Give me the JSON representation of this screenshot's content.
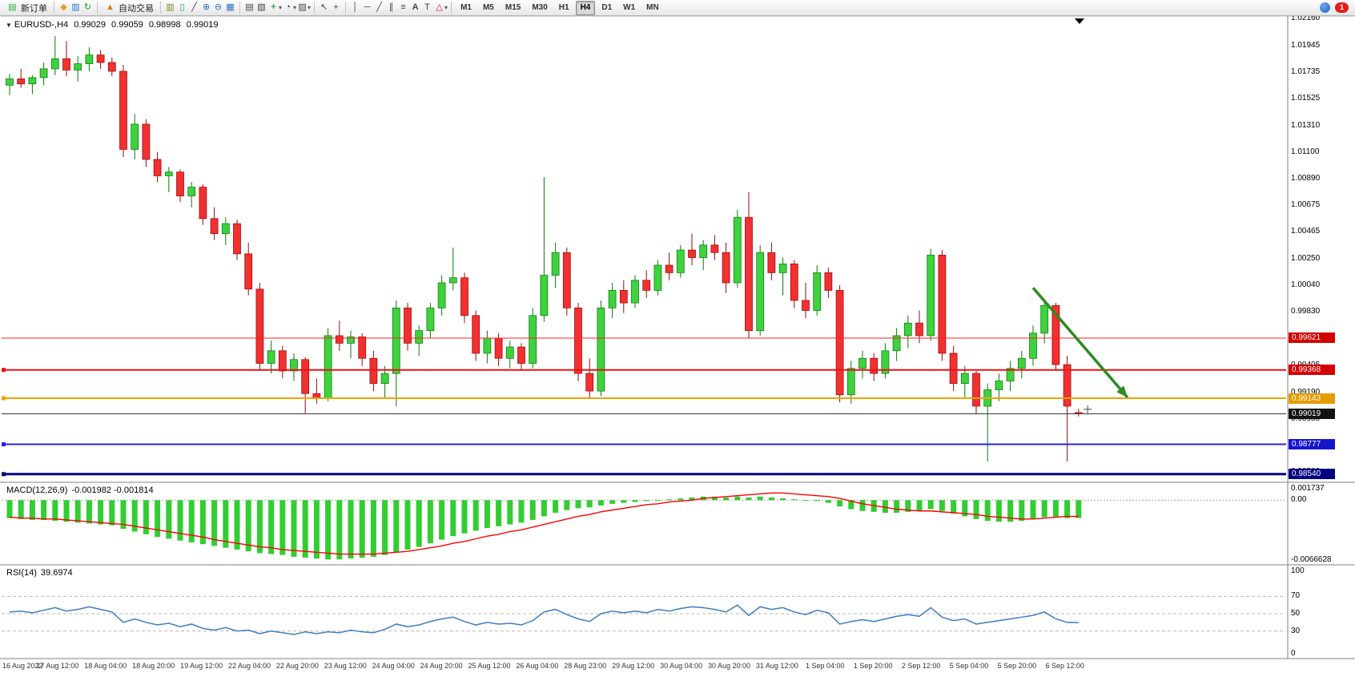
{
  "toolbar": {
    "new_order": "新订单",
    "autotrading": "自动交易",
    "timeframes": [
      "M1",
      "M5",
      "M15",
      "M30",
      "H1",
      "H4",
      "D1",
      "W1",
      "MN"
    ],
    "active_timeframe": "H4",
    "notification_count": "1"
  },
  "icons": {
    "new_order": "▤",
    "market_watch": "◆",
    "data_window": "▥",
    "refresh": "↻",
    "autotrading": "▲",
    "bar_chart": "▥",
    "candles": "▯",
    "line_chart": "╱",
    "zoom_in": "⊕",
    "zoom_out": "⊖",
    "tile_windows": "▦",
    "chart_list": "▤",
    "objects_list": "▧",
    "add_indicator": "+",
    "periods_clock": "◔",
    "templates": "▨",
    "cursor": "↖",
    "crosshair": "+",
    "vline": "│",
    "hline": "─",
    "trendline": "╱",
    "channel": "∥",
    "fibonacci": "≡",
    "text": "A",
    "text_label": "T",
    "shapes": "△",
    "dropdown": "▾",
    "shift_marker": "▼"
  },
  "time_axis": {
    "labels": [
      "16 Aug 2022",
      "17 Aug 12:00",
      "18 Aug 04:00",
      "18 Aug 20:00",
      "19 Aug 12:00",
      "22 Aug 04:00",
      "22 Aug 20:00",
      "23 Aug 12:00",
      "24 Aug 04:00",
      "24 Aug 20:00",
      "25 Aug 12:00",
      "26 Aug 04:00",
      "28 Aug 23:00",
      "29 Aug 12:00",
      "30 Aug 04:00",
      "30 Aug 20:00",
      "31 Aug 12:00",
      "1 Sep 04:00",
      "1 Sep 20:00",
      "2 Sep 12:00",
      "5 Sep 04:00",
      "5 Sep 20:00",
      "6 Sep 12:00"
    ]
  },
  "chart_data": [
    {
      "type": "candlestick",
      "title": "EURUSD-,H4",
      "ohlc_label": {
        "open": "0.99029",
        "high": "0.99059",
        "low": "0.98998",
        "close": "0.99019"
      },
      "ylim": [
        0.98475,
        1.021665
      ],
      "yticks": [
        "1.02160",
        "1.01945",
        "1.01735",
        "1.01525",
        "1.01310",
        "1.01100",
        "1.00890",
        "1.00675",
        "1.00465",
        "1.00250",
        "1.00040",
        "0.99830",
        "0.99620",
        "0.99405",
        "0.99190",
        "0.98980",
        "0.98770",
        "0.98560"
      ],
      "price_badges": [
        {
          "label": "0.99621",
          "color": "#d40000"
        },
        {
          "label": "0.99368",
          "color": "#d40000"
        },
        {
          "label": "0.99143",
          "color": "#e69b00"
        },
        {
          "label": "0.99019",
          "color": "#111111"
        },
        {
          "label": "0.98777",
          "color": "#1515cc"
        },
        {
          "label": "0.98540",
          "color": "#000080"
        }
      ],
      "hlines": [
        {
          "price": 0.99621,
          "color": "#ff2020",
          "width": 1,
          "handles": false
        },
        {
          "price": 0.99368,
          "color": "#ee1010",
          "width": 2,
          "handles": true
        },
        {
          "price": 0.99143,
          "color": "#f0a500",
          "width": 2,
          "handles": true
        },
        {
          "price": 0.99019,
          "color": "#383838",
          "width": 1,
          "handles": false
        },
        {
          "price": 0.98777,
          "color": "#2222ee",
          "width": 2,
          "handles": true
        },
        {
          "price": 0.9854,
          "color": "#000080",
          "width": 3,
          "handles": true
        }
      ],
      "trend_arrow": {
        "from_bar": 90,
        "from_price": 1.0002,
        "to_bar": 98.3,
        "to_price": 0.9915,
        "color": "#2e8b22"
      },
      "cursor_cross": {
        "bar": 94.8,
        "price": 0.99055
      },
      "candle_colors": {
        "up_fill": "#3fd23f",
        "up_stroke": "#0a7a0a",
        "down_fill": "#f23030",
        "down_stroke": "#9a0a0a"
      },
      "candles": [
        [
          1.0163,
          1.0172,
          1.0155,
          1.0168
        ],
        [
          1.0168,
          1.0176,
          1.0161,
          1.0164
        ],
        [
          1.0164,
          1.0171,
          1.0156,
          1.0169
        ],
        [
          1.0169,
          1.0181,
          1.0163,
          1.0176
        ],
        [
          1.0176,
          1.0202,
          1.0171,
          1.0184
        ],
        [
          1.0184,
          1.0198,
          1.017,
          1.0175
        ],
        [
          1.0175,
          1.0186,
          1.0166,
          1.018
        ],
        [
          1.018,
          1.0193,
          1.0174,
          1.0187
        ],
        [
          1.0187,
          1.0191,
          1.0176,
          1.0181
        ],
        [
          1.0181,
          1.0185,
          1.017,
          1.0174
        ],
        [
          1.0174,
          1.0179,
          1.0106,
          1.0112
        ],
        [
          1.0112,
          1.014,
          1.0104,
          1.0132
        ],
        [
          1.0132,
          1.0136,
          1.0098,
          1.0104
        ],
        [
          1.0104,
          1.011,
          1.0086,
          1.0091
        ],
        [
          1.0091,
          1.0098,
          1.0078,
          1.0094
        ],
        [
          1.0094,
          1.0096,
          1.007,
          1.0075
        ],
        [
          1.0075,
          1.0086,
          1.0066,
          1.0082
        ],
        [
          1.0082,
          1.0084,
          1.0052,
          1.0057
        ],
        [
          1.0057,
          1.0066,
          1.004,
          1.0045
        ],
        [
          1.0045,
          1.0058,
          1.0036,
          1.0053
        ],
        [
          1.0053,
          1.0056,
          1.0024,
          1.0029
        ],
        [
          1.0029,
          1.0038,
          0.9996,
          1.0001
        ],
        [
          1.0001,
          1.0006,
          0.9936,
          0.9942
        ],
        [
          0.9942,
          0.996,
          0.9934,
          0.9952
        ],
        [
          0.9952,
          0.9956,
          0.993,
          0.9936
        ],
        [
          0.9936,
          0.995,
          0.9928,
          0.9945
        ],
        [
          0.9945,
          0.9947,
          0.9902,
          0.9918
        ],
        [
          0.9918,
          0.993,
          0.991,
          0.9914
        ],
        [
          0.9914,
          0.997,
          0.9912,
          0.9964
        ],
        [
          0.9964,
          0.9976,
          0.9952,
          0.9958
        ],
        [
          0.9958,
          0.9968,
          0.9946,
          0.9963
        ],
        [
          0.9963,
          0.9966,
          0.994,
          0.9946
        ],
        [
          0.9946,
          0.9952,
          0.992,
          0.9926
        ],
        [
          0.9926,
          0.994,
          0.9914,
          0.9934
        ],
        [
          0.9934,
          0.9992,
          0.9908,
          0.9986
        ],
        [
          0.9986,
          0.999,
          0.9952,
          0.9958
        ],
        [
          0.9958,
          0.9972,
          0.9948,
          0.9968
        ],
        [
          0.9968,
          0.999,
          0.9962,
          0.9986
        ],
        [
          0.9986,
          1.0012,
          0.998,
          1.0006
        ],
        [
          1.0006,
          1.0034,
          1.0,
          1.001
        ],
        [
          1.001,
          1.0014,
          0.9974,
          0.998
        ],
        [
          0.998,
          0.9984,
          0.9944,
          0.995
        ],
        [
          0.995,
          0.9968,
          0.9942,
          0.9962
        ],
        [
          0.9962,
          0.9966,
          0.994,
          0.9946
        ],
        [
          0.9946,
          0.996,
          0.9938,
          0.9955
        ],
        [
          0.9955,
          0.9958,
          0.9936,
          0.9942
        ],
        [
          0.9942,
          0.9986,
          0.9938,
          0.998
        ],
        [
          0.998,
          1.009,
          0.9975,
          1.0012
        ],
        [
          1.0012,
          1.0038,
          1.0002,
          1.003
        ],
        [
          1.003,
          1.0034,
          0.998,
          0.9986
        ],
        [
          0.9986,
          0.999,
          0.9928,
          0.9934
        ],
        [
          0.9934,
          0.9946,
          0.9914,
          0.992
        ],
        [
          0.992,
          0.9992,
          0.9916,
          0.9986
        ],
        [
          0.9986,
          1.0006,
          0.9978,
          1.0
        ],
        [
          1.0,
          1.0008,
          0.9982,
          0.999
        ],
        [
          0.999,
          1.0012,
          0.9986,
          1.0008
        ],
        [
          1.0008,
          1.0016,
          0.9994,
          1.0
        ],
        [
          1.0,
          1.0024,
          0.9996,
          1.002
        ],
        [
          1.002,
          1.003,
          1.0008,
          1.0014
        ],
        [
          1.0014,
          1.0036,
          1.001,
          1.0032
        ],
        [
          1.0032,
          1.0045,
          1.002,
          1.0026
        ],
        [
          1.0026,
          1.004,
          1.0016,
          1.0036
        ],
        [
          1.0036,
          1.0044,
          1.0024,
          1.003
        ],
        [
          1.003,
          1.0038,
          0.9998,
          1.0006
        ],
        [
          1.0006,
          1.0064,
          1.0002,
          1.0058
        ],
        [
          1.0058,
          1.0078,
          0.9962,
          0.9968
        ],
        [
          0.9968,
          1.0036,
          0.9964,
          1.003
        ],
        [
          1.003,
          1.0038,
          1.0008,
          1.0014
        ],
        [
          1.0014,
          1.0026,
          0.9996,
          1.0021
        ],
        [
          1.0021,
          1.0024,
          0.9986,
          0.9992
        ],
        [
          0.9992,
          1.0006,
          0.9978,
          0.9984
        ],
        [
          0.9984,
          1.002,
          0.998,
          1.0014
        ],
        [
          1.0014,
          1.0018,
          0.9994,
          1.0
        ],
        [
          1.0,
          1.0004,
          0.9911,
          0.9917
        ],
        [
          0.9917,
          0.9944,
          0.991,
          0.9938
        ],
        [
          0.9938,
          0.9952,
          0.993,
          0.9946
        ],
        [
          0.9946,
          0.995,
          0.9928,
          0.9934
        ],
        [
          0.9934,
          0.9958,
          0.993,
          0.9952
        ],
        [
          0.9952,
          0.997,
          0.9944,
          0.9964
        ],
        [
          0.9964,
          0.998,
          0.9954,
          0.9974
        ],
        [
          0.9974,
          0.9984,
          0.9958,
          0.9964
        ],
        [
          0.9964,
          1.0033,
          0.996,
          1.0028
        ],
        [
          1.0028,
          1.0032,
          0.9944,
          0.995
        ],
        [
          0.995,
          0.9956,
          0.992,
          0.9926
        ],
        [
          0.9926,
          0.994,
          0.9914,
          0.9934
        ],
        [
          0.9934,
          0.9936,
          0.9902,
          0.9908
        ],
        [
          0.9908,
          0.9926,
          0.9864,
          0.9921
        ],
        [
          0.9921,
          0.9934,
          0.9912,
          0.9928
        ],
        [
          0.9928,
          0.9944,
          0.992,
          0.9938
        ],
        [
          0.9938,
          0.9952,
          0.993,
          0.9946
        ],
        [
          0.9946,
          0.9972,
          0.994,
          0.9966
        ],
        [
          0.9966,
          0.9993,
          0.9958,
          0.9988
        ],
        [
          0.9988,
          0.999,
          0.9936,
          0.9941
        ],
        [
          0.9941,
          0.9948,
          0.9864,
          0.9908
        ],
        [
          0.99029,
          0.99059,
          0.98998,
          0.99019
        ]
      ]
    },
    {
      "type": "bar",
      "name": "MACD(12,26,9)",
      "values_label": "-0.001982 -0.001814",
      "ylim": [
        -0.0072,
        0.0019
      ],
      "yticks": [
        {
          "label": "0.001737",
          "value": 0.001737
        },
        {
          "label": "0.00",
          "value": 0.0
        },
        {
          "label": "-0.0066628",
          "value": -0.0066628
        }
      ],
      "colors": {
        "histogram": "#32cd32",
        "signal": "#ff0000"
      },
      "histogram": [
        -0.002,
        -0.0021,
        -0.0022,
        -0.0022,
        -0.0023,
        -0.0024,
        -0.0025,
        -0.0026,
        -0.0027,
        -0.0028,
        -0.0032,
        -0.0035,
        -0.0038,
        -0.0041,
        -0.0043,
        -0.0045,
        -0.0047,
        -0.0049,
        -0.0051,
        -0.0053,
        -0.0055,
        -0.0057,
        -0.0059,
        -0.006,
        -0.0061,
        -0.0063,
        -0.0064,
        -0.0065,
        -0.0066,
        -0.0066,
        -0.0065,
        -0.0064,
        -0.0063,
        -0.0061,
        -0.0058,
        -0.0055,
        -0.0052,
        -0.0048,
        -0.0044,
        -0.004,
        -0.0037,
        -0.0034,
        -0.0031,
        -0.0029,
        -0.0027,
        -0.0025,
        -0.0022,
        -0.0018,
        -0.0014,
        -0.0011,
        -0.0009,
        -0.0008,
        -0.0006,
        -0.0004,
        -0.0003,
        -0.0002,
        -0.0001,
        0.0,
        0.0001,
        0.0002,
        0.0003,
        0.0004,
        0.0004,
        0.0003,
        0.0004,
        0.0003,
        0.0004,
        0.0003,
        0.0002,
        0.0001,
        0.0,
        -0.0001,
        -0.0003,
        -0.0007,
        -0.001,
        -0.0012,
        -0.0013,
        -0.0014,
        -0.0014,
        -0.0013,
        -0.0012,
        -0.001,
        -0.0012,
        -0.0015,
        -0.0018,
        -0.0021,
        -0.0023,
        -0.0024,
        -0.0024,
        -0.0023,
        -0.0021,
        -0.0019,
        -0.0019,
        -0.002,
        -0.001982
      ],
      "signal": [
        -0.0019,
        -0.002,
        -0.002,
        -0.0021,
        -0.0021,
        -0.0022,
        -0.0023,
        -0.0024,
        -0.0025,
        -0.0026,
        -0.0027,
        -0.0029,
        -0.0031,
        -0.0033,
        -0.0035,
        -0.0037,
        -0.0039,
        -0.0041,
        -0.0044,
        -0.0046,
        -0.0048,
        -0.005,
        -0.0052,
        -0.0053,
        -0.0055,
        -0.0056,
        -0.0057,
        -0.0058,
        -0.0059,
        -0.006,
        -0.006,
        -0.006,
        -0.006,
        -0.0059,
        -0.0058,
        -0.0057,
        -0.0055,
        -0.0053,
        -0.0051,
        -0.0048,
        -0.0046,
        -0.0043,
        -0.004,
        -0.0038,
        -0.0035,
        -0.0033,
        -0.003,
        -0.0027,
        -0.0024,
        -0.0021,
        -0.0018,
        -0.0016,
        -0.0013,
        -0.0011,
        -0.0009,
        -0.0007,
        -0.0005,
        -0.0004,
        -0.0002,
        -0.0001,
        0.0,
        0.0002,
        0.0003,
        0.0004,
        0.0005,
        0.0006,
        0.0007,
        0.0008,
        0.0008,
        0.0007,
        0.0006,
        0.0005,
        0.0004,
        0.0002,
        -0.0001,
        -0.0004,
        -0.0006,
        -0.0008,
        -0.001,
        -0.0011,
        -0.0012,
        -0.0012,
        -0.0013,
        -0.0014,
        -0.0015,
        -0.0016,
        -0.0018,
        -0.0019,
        -0.002,
        -0.0021,
        -0.0021,
        -0.002,
        -0.0019,
        -0.0018,
        -0.001814
      ]
    },
    {
      "type": "line",
      "name": "RSI(14)",
      "value": "39.6974",
      "ylim": [
        0,
        100
      ],
      "levels": [
        70,
        50,
        30
      ],
      "yticks": [
        {
          "label": "100",
          "value": 100
        },
        {
          "label": "70",
          "value": 70
        },
        {
          "label": "50",
          "value": 50
        },
        {
          "label": "30",
          "value": 30
        },
        {
          "label": "0",
          "value": 0
        }
      ],
      "color": "#3d7ebf",
      "values": [
        52,
        53,
        51,
        54,
        57,
        53,
        55,
        58,
        55,
        52,
        40,
        44,
        40,
        37,
        39,
        35,
        38,
        33,
        31,
        34,
        30,
        31,
        27,
        30,
        28,
        26,
        29,
        27,
        29,
        28,
        31,
        29,
        28,
        32,
        38,
        35,
        37,
        41,
        44,
        46,
        41,
        37,
        40,
        38,
        39,
        37,
        42,
        52,
        55,
        49,
        44,
        41,
        50,
        53,
        51,
        53,
        51,
        55,
        53,
        56,
        58,
        57,
        55,
        52,
        60,
        48,
        58,
        55,
        57,
        52,
        49,
        54,
        51,
        38,
        41,
        43,
        41,
        44,
        47,
        49,
        47,
        57,
        46,
        42,
        44,
        38,
        40,
        42,
        44,
        46,
        48,
        52,
        44,
        40,
        39.6974
      ]
    }
  ]
}
